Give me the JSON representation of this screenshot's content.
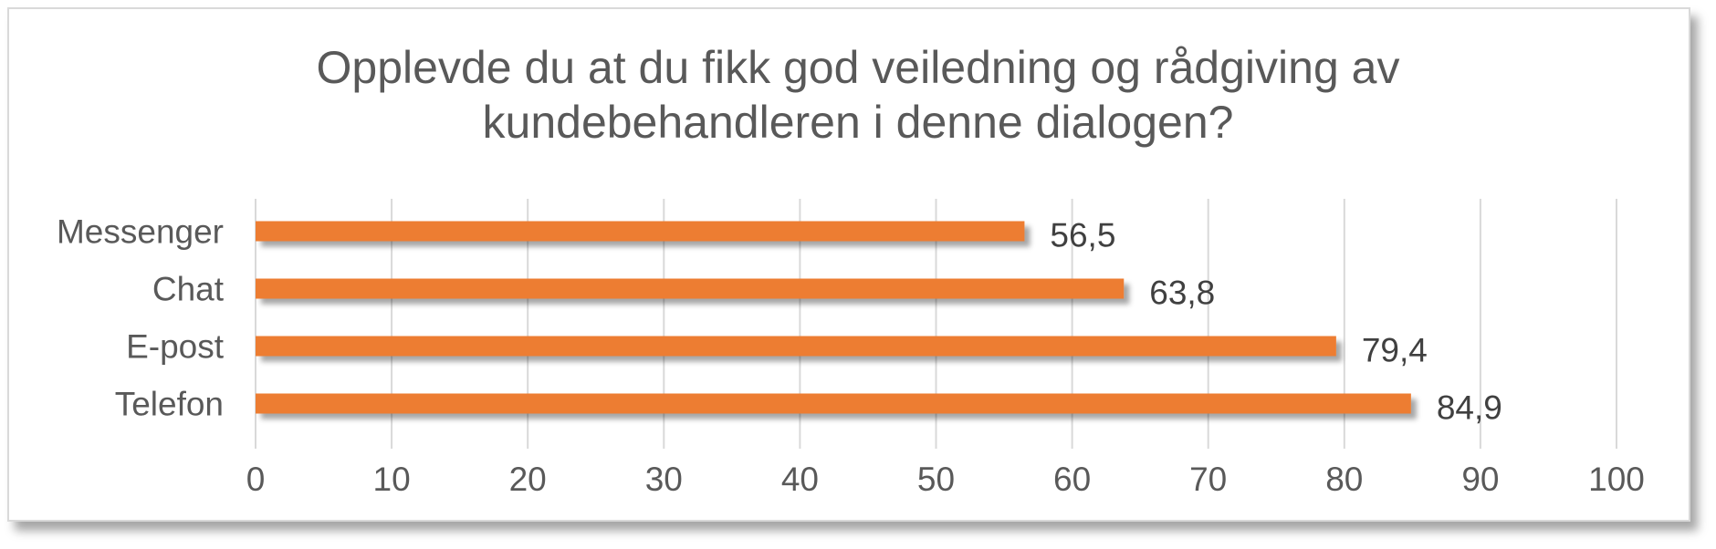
{
  "chart_data": {
    "type": "bar",
    "orientation": "horizontal",
    "title": [
      "Opplevde du at du fikk god veiledning og rådgiving av",
      "kundebehandleren i denne dialogen?"
    ],
    "categories": [
      "Messenger",
      "Chat",
      "E-post",
      "Telefon"
    ],
    "values": [
      56.5,
      63.8,
      79.4,
      84.9
    ],
    "data_labels": [
      "56,5",
      "63,8",
      "79,4",
      "84,9"
    ],
    "xlim": [
      0,
      100
    ],
    "x_ticks": [
      0,
      10,
      20,
      30,
      40,
      50,
      60,
      70,
      80,
      90,
      100
    ],
    "grid": true,
    "legend": false,
    "bar_color": "#ED7D31"
  }
}
